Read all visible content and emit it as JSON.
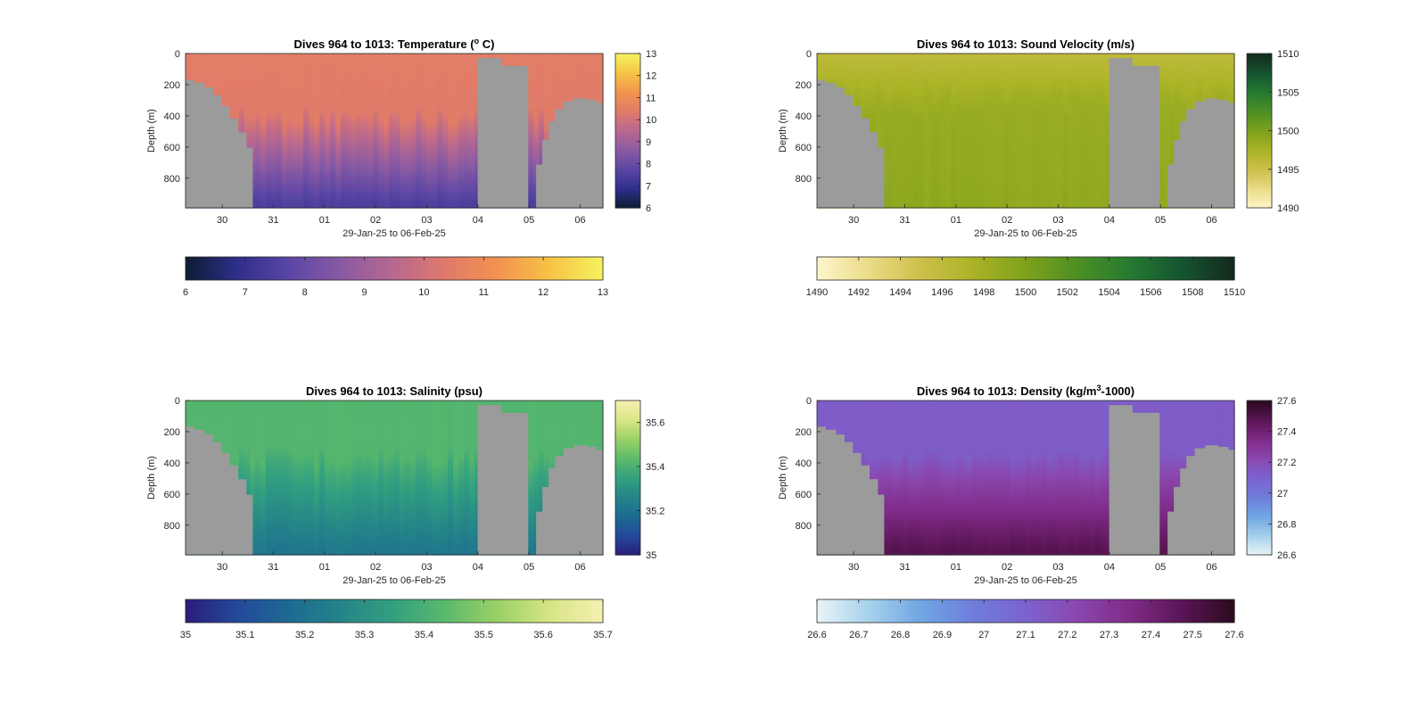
{
  "chart_data": [
    {
      "type": "heatmap",
      "title_prefix": "Dives 964 to 1013: Temperature (",
      "title_sup": "o",
      "title_suffix": " C)",
      "ylabel": "Depth (m)",
      "xlabel": "29-Jan-25 to 06-Feb-25",
      "x_ticks": [
        "30",
        "31",
        "01",
        "02",
        "03",
        "04",
        "05",
        "06"
      ],
      "y_ticks": [
        "0",
        "200",
        "400",
        "600",
        "800"
      ],
      "ylim": [
        0,
        990
      ],
      "colorbar_vertical_ticks": [
        "6",
        "7",
        "8",
        "9",
        "10",
        "11",
        "12",
        "13"
      ],
      "colorbar_horizontal_ticks": [
        "6",
        "7",
        "8",
        "9",
        "10",
        "11",
        "12",
        "13"
      ],
      "colormap": [
        "#0d1c33",
        "#2e2f8a",
        "#5c46a5",
        "#8a5aa3",
        "#b8688f",
        "#e07a6a",
        "#f2934f",
        "#f7c346",
        "#f4f35e"
      ],
      "profile": {
        "surface": 10.5,
        "mixed": 10.4,
        "thermocline_top": 400,
        "deep": 7.5,
        "thermocline_bottom": 950
      }
    },
    {
      "type": "heatmap",
      "title_prefix": "Dives 964 to 1013: Sound Velocity (m/s)",
      "title_sup": "",
      "title_suffix": "",
      "ylabel": "Depth (m)",
      "xlabel": "29-Jan-25 to 06-Feb-25",
      "x_ticks": [
        "30",
        "31",
        "01",
        "02",
        "03",
        "04",
        "05",
        "06"
      ],
      "y_ticks": [
        "0",
        "200",
        "400",
        "600",
        "800"
      ],
      "ylim": [
        0,
        990
      ],
      "colorbar_vertical_ticks": [
        "1490",
        "1495",
        "1500",
        "1505",
        "1510"
      ],
      "colorbar_horizontal_ticks": [
        "1490",
        "1492",
        "1494",
        "1496",
        "1498",
        "1500",
        "1502",
        "1504",
        "1506",
        "1508",
        "1510"
      ],
      "colormap": [
        "#fdf6cc",
        "#eadb86",
        "#cdbf4a",
        "#aab326",
        "#7ea21c",
        "#4c8f24",
        "#257a31",
        "#155430",
        "#132a1c"
      ],
      "profile": {
        "surface": 1496,
        "mixed": 1498.5,
        "thermocline_top": 350,
        "deep": 1499,
        "thermocline_bottom": 950
      }
    },
    {
      "type": "heatmap",
      "title_prefix": "Dives 964 to 1013: Salinity (psu)",
      "title_sup": "",
      "title_suffix": "",
      "ylabel": "Depth (m)",
      "xlabel": "29-Jan-25 to 06-Feb-25",
      "x_ticks": [
        "30",
        "31",
        "01",
        "02",
        "03",
        "04",
        "05",
        "06"
      ],
      "y_ticks": [
        "0",
        "200",
        "400",
        "600",
        "800"
      ],
      "ylim": [
        0,
        990
      ],
      "colorbar_vertical_ticks": [
        "35",
        "35.2",
        "35.4",
        "35.6"
      ],
      "colorbar_horizontal_ticks": [
        "35",
        "35.1",
        "35.2",
        "35.3",
        "35.4",
        "35.5",
        "35.6",
        "35.7"
      ],
      "colormap": [
        "#2a1d7a",
        "#24499b",
        "#1d6a92",
        "#248588",
        "#33a07f",
        "#5cba6b",
        "#9bd167",
        "#d8e586",
        "#f5f0b0"
      ],
      "profile": {
        "surface": 35.42,
        "mixed": 35.42,
        "thermocline_top": 350,
        "deep": 35.22,
        "thermocline_bottom": 950
      }
    },
    {
      "type": "heatmap",
      "title_prefix": "Dives 964 to 1013: Density (kg/m",
      "title_sup": "3",
      "title_suffix": "-1000)",
      "ylabel": "Depth (m)",
      "xlabel": "29-Jan-25 to 06-Feb-25",
      "x_ticks": [
        "30",
        "31",
        "01",
        "02",
        "03",
        "04",
        "05",
        "06"
      ],
      "y_ticks": [
        "0",
        "200",
        "400",
        "600",
        "800"
      ],
      "ylim": [
        0,
        990
      ],
      "colorbar_vertical_ticks": [
        "26.6",
        "26.8",
        "27",
        "27.2",
        "27.4",
        "27.6"
      ],
      "colorbar_horizontal_ticks": [
        "26.6",
        "26.7",
        "26.8",
        "26.9",
        "27",
        "27.1",
        "27.2",
        "27.3",
        "27.4",
        "27.5",
        "27.6"
      ],
      "colormap": [
        "#e9f4f7",
        "#a6d1ec",
        "#6fa6e2",
        "#6f7ddb",
        "#7b63cf",
        "#8a47ae",
        "#7f2b88",
        "#5a1555",
        "#2c0a1f"
      ],
      "profile": {
        "surface": 27.13,
        "mixed": 27.13,
        "thermocline_top": 350,
        "deep": 27.48,
        "thermocline_bottom": 950
      }
    }
  ]
}
